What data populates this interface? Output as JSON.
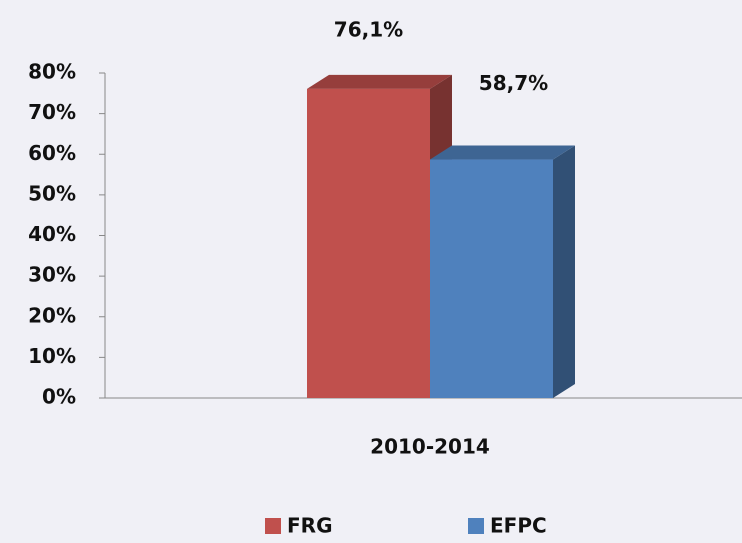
{
  "chart_data": {
    "type": "bar3d",
    "categories": [
      "2010-2014"
    ],
    "series": [
      {
        "name": "FRG",
        "color": "#c0504d",
        "values": [
          76.1
        ],
        "value_labels": [
          "76,1%"
        ]
      },
      {
        "name": "EFPC",
        "color": "#4f81bd",
        "values": [
          58.7
        ],
        "value_labels": [
          "58,7%"
        ]
      }
    ],
    "ylim": [
      0,
      80
    ],
    "yticks": [
      {
        "value": 0,
        "label": "0%"
      },
      {
        "value": 10,
        "label": "10%"
      },
      {
        "value": 20,
        "label": "20%"
      },
      {
        "value": 30,
        "label": "30%"
      },
      {
        "value": 40,
        "label": "40%"
      },
      {
        "value": 50,
        "label": "50%"
      },
      {
        "value": 60,
        "label": "60%"
      },
      {
        "value": 70,
        "label": "70%"
      },
      {
        "value": 80,
        "label": "80%"
      }
    ],
    "legend": "bottom"
  }
}
